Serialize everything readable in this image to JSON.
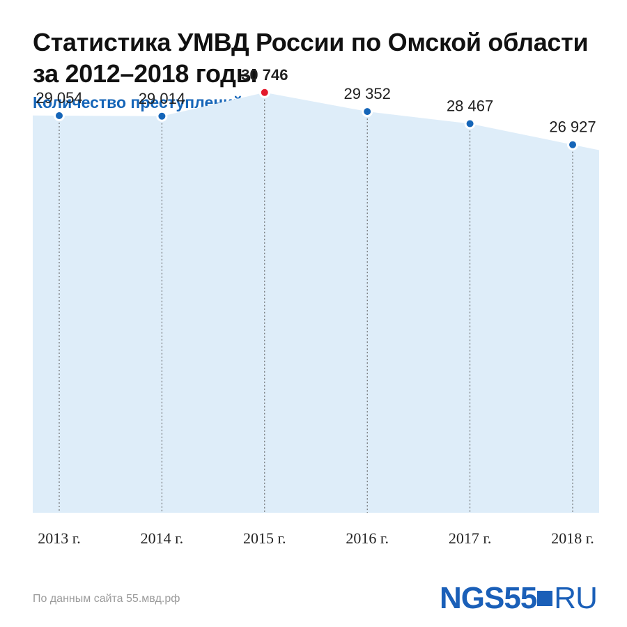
{
  "title": "Статистика УМВД России по Омской области за 2012–2018 годы",
  "source": "По данным сайта 55.мвд.рф",
  "logo": {
    "main": "NGS55",
    "suffix": "RU"
  },
  "colors": {
    "fill": "#deedf9",
    "point": "#1565b8",
    "highlight": "#e3192b",
    "subtitle": "#1565b8",
    "logo": "#1a5fb8"
  },
  "chart_data": {
    "type": "area",
    "title": "",
    "subtitle": "Количество преступлений",
    "categories": [
      "2013 г.",
      "2014 г.",
      "2015 г.",
      "2016 г.",
      "2017 г.",
      "2018 г."
    ],
    "series": [
      {
        "values": [
          29054,
          29014,
          30746,
          29352,
          28467,
          26927
        ],
        "labels": [
          "29 054",
          "29 014",
          "30 746",
          "29 352",
          "28 467",
          "26 927"
        ]
      }
    ],
    "highlight_index": 2,
    "ylim": [
      0,
      31500
    ],
    "grid": false
  }
}
